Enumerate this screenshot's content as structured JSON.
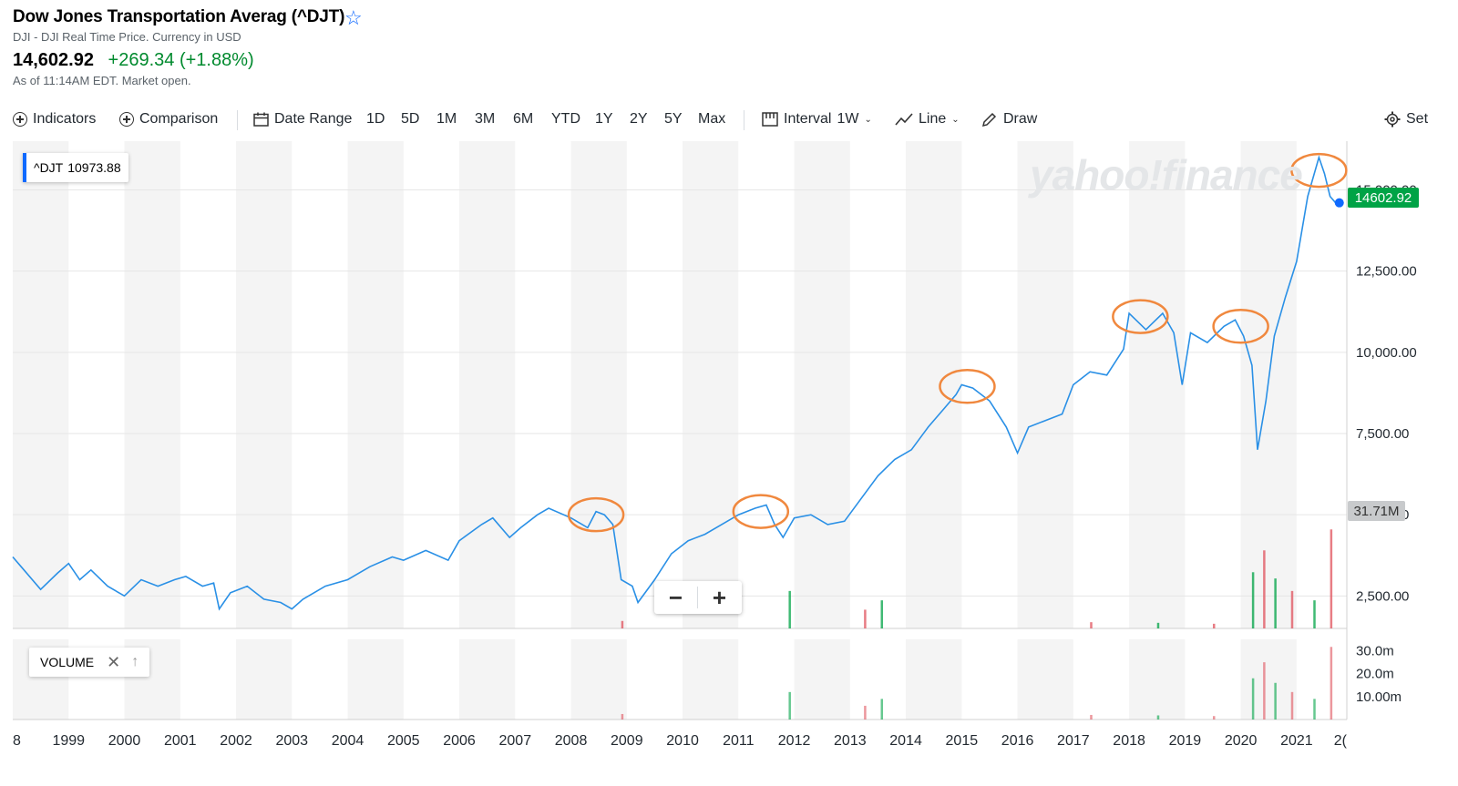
{
  "header": {
    "title": "Dow Jones Transportation Averag (^DJT)",
    "subtitle": "DJI - DJI Real Time Price. Currency in USD",
    "price": "14,602.92",
    "change": "+269.34 (+1.88%)",
    "as_of": "As of 11:14AM EDT. Market open."
  },
  "toolbar": {
    "indicators": "Indicators",
    "comparison": "Comparison",
    "date_range": "Date Range",
    "ranges": [
      "1D",
      "5D",
      "1M",
      "3M",
      "6M",
      "YTD",
      "1Y",
      "2Y",
      "5Y",
      "Max"
    ],
    "interval_label": "Interval",
    "interval_value": "1W",
    "chart_type": "Line",
    "draw": "Draw",
    "settings": "Set"
  },
  "legend": {
    "label": "^DJT",
    "value": "10973.88"
  },
  "volume_panel": {
    "label": "VOLUME"
  },
  "watermark": "yahoo!finance",
  "price_tag": "14602.92",
  "volume_tag": "31.71M",
  "colors": {
    "line": "#2a90e6",
    "highlight": "#f0883e",
    "up": "#00a346",
    "down": "#e0525c"
  },
  "chart_data": {
    "type": "line",
    "title": "",
    "series": [
      {
        "name": "^DJT",
        "x": [
          1998.0,
          1998.2,
          1998.5,
          1998.8,
          1999.0,
          1999.2,
          1999.4,
          1999.7,
          2000.0,
          2000.3,
          2000.6,
          2000.9,
          2001.1,
          2001.4,
          2001.6,
          2001.7,
          2001.9,
          2002.2,
          2002.5,
          2002.8,
          2003.0,
          2003.2,
          2003.6,
          2004.0,
          2004.4,
          2004.8,
          2005.0,
          2005.4,
          2005.8,
          2006.0,
          2006.4,
          2006.6,
          2006.9,
          2007.1,
          2007.4,
          2007.6,
          2008.0,
          2008.3,
          2008.45,
          2008.6,
          2008.75,
          2008.9,
          2009.1,
          2009.2,
          2009.5,
          2009.8,
          2010.1,
          2010.4,
          2010.7,
          2011.0,
          2011.3,
          2011.5,
          2011.65,
          2011.8,
          2012.0,
          2012.3,
          2012.6,
          2012.9,
          2013.2,
          2013.5,
          2013.8,
          2014.1,
          2014.4,
          2014.7,
          2014.9,
          2015.0,
          2015.2,
          2015.5,
          2015.8,
          2016.0,
          2016.2,
          2016.5,
          2016.8,
          2017.0,
          2017.3,
          2017.6,
          2017.9,
          2018.0,
          2018.3,
          2018.6,
          2018.8,
          2018.95,
          2019.1,
          2019.4,
          2019.7,
          2019.9,
          2020.05,
          2020.2,
          2020.3,
          2020.45,
          2020.6,
          2020.8,
          2021.0,
          2021.2,
          2021.4,
          2021.5,
          2021.6,
          2021.7
        ],
        "y": [
          3700,
          3300,
          2700,
          3200,
          3500,
          3000,
          3300,
          2800,
          2500,
          3000,
          2800,
          3000,
          3100,
          2800,
          2900,
          2100,
          2600,
          2800,
          2400,
          2300,
          2100,
          2400,
          2800,
          3000,
          3400,
          3700,
          3600,
          3900,
          3600,
          4200,
          4700,
          4900,
          4300,
          4600,
          5000,
          5200,
          4900,
          4600,
          5100,
          5000,
          4700,
          3000,
          2800,
          2300,
          3000,
          3800,
          4200,
          4400,
          4700,
          5000,
          5200,
          5300,
          4700,
          4300,
          4900,
          5000,
          4700,
          4800,
          5500,
          6200,
          6700,
          7000,
          7700,
          8300,
          8700,
          9000,
          8900,
          8500,
          7700,
          6900,
          7700,
          7900,
          8100,
          9000,
          9400,
          9300,
          10100,
          11200,
          10700,
          11200,
          10600,
          9000,
          10600,
          10300,
          10800,
          11000,
          10500,
          9600,
          7000,
          8500,
          10500,
          11700,
          12800,
          14800,
          16000,
          15500,
          14800,
          14602.92
        ]
      }
    ],
    "x_ticks": [
      "8",
      "1999",
      "2000",
      "2001",
      "2002",
      "2003",
      "2004",
      "2005",
      "2006",
      "2007",
      "2008",
      "2009",
      "2010",
      "2011",
      "2012",
      "2013",
      "2014",
      "2015",
      "2016",
      "2017",
      "2018",
      "2019",
      "2020",
      "2021",
      "2("
    ],
    "y_ticks": [
      "2,500.00",
      "5,000.00",
      "7,500.00",
      "10,000.00",
      "12,500.00",
      "15,000.00"
    ],
    "volume_ticks": [
      "10.00m",
      "20.0m",
      "30.0m"
    ],
    "volume_spikes": [
      {
        "x": 2008.9,
        "v": 2.4
      },
      {
        "x": 2011.9,
        "v": 12.0
      },
      {
        "x": 2013.25,
        "v": 6.0
      },
      {
        "x": 2013.55,
        "v": 9.0
      },
      {
        "x": 2017.3,
        "v": 2.0
      },
      {
        "x": 2018.5,
        "v": 1.8
      },
      {
        "x": 2019.5,
        "v": 1.5
      },
      {
        "x": 2020.2,
        "v": 18.0
      },
      {
        "x": 2020.4,
        "v": 25.0
      },
      {
        "x": 2020.6,
        "v": 16.0
      },
      {
        "x": 2020.9,
        "v": 12.0
      },
      {
        "x": 2021.3,
        "v": 9.0
      },
      {
        "x": 2021.6,
        "v": 31.71
      }
    ],
    "highlighted_peaks": [
      "2008.45",
      "2011.4",
      "2015.1",
      "2018.2",
      "2020.0",
      "2021.4"
    ],
    "xlim": [
      1998.0,
      2021.9
    ],
    "ylim": [
      1500,
      16500
    ],
    "volume_ylim": [
      0,
      35
    ],
    "grid": true,
    "legend_position": "top-left"
  }
}
